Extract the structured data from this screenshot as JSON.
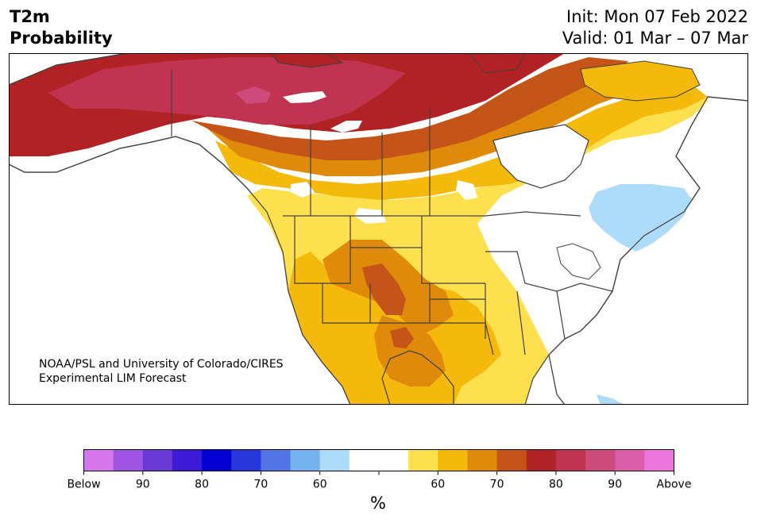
{
  "title": {
    "line1": "T2m",
    "line2": "Probability",
    "init": "Init: Mon 07 Feb 2022",
    "valid": "Valid: 01 Mar – 07 Mar"
  },
  "credit": {
    "line1": "NOAA/PSL and University of Colorado/CIRES",
    "line2": "Experimental LIM Forecast"
  },
  "colorbar": {
    "colors": [
      "#d676ec",
      "#9e53e3",
      "#6b38d8",
      "#3c1ad6",
      "#0400d3",
      "#2737dc",
      "#5275e6",
      "#76b1f0",
      "#acdcfa",
      "#ffffff",
      "#ffffff",
      "#fee04e",
      "#f4b90a",
      "#e08a0c",
      "#c55418",
      "#b12224",
      "#c03451",
      "#ce4a7b",
      "#dc5ea8",
      "#ea75dc"
    ],
    "tick_labels": [
      "Below",
      "90",
      "80",
      "70",
      "60",
      "60",
      "70",
      "80",
      "90",
      "Above"
    ],
    "unit": "%"
  },
  "colors": {
    "land": "#ffffff",
    "border": "#404040"
  }
}
